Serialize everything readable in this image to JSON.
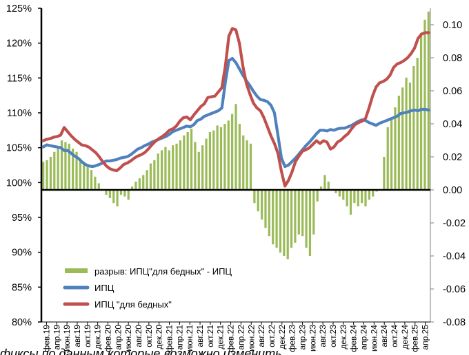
{
  "chart_data": {
    "type": "line",
    "title": "",
    "xlabel": "",
    "ylabel": "",
    "y_left": {
      "range": [
        80,
        125
      ],
      "ticks": [
        "80%",
        "85%",
        "90%",
        "95%",
        "100%",
        "105%",
        "110%",
        "115%",
        "120%",
        "125%"
      ]
    },
    "y_right": {
      "range": [
        -0.08,
        0.11
      ],
      "ticks": [
        "-0.08",
        "-0.06",
        "-0.04",
        "-0.02",
        "0.00",
        "0.02",
        "0.04",
        "0.06",
        "0.08",
        "0.10"
      ]
    },
    "grid": false,
    "legend_position": "bottom-left",
    "x_tick_labels": [
      "фев.19",
      "апр.19",
      "июн.19",
      "авг.19",
      "окт.19",
      "дек.19",
      "фев.20",
      "апр.20",
      "июн.20",
      "авг.20",
      "окт.20",
      "дек.20",
      "фев.21",
      "апр.21",
      "июн.21",
      "авг.21",
      "окт.21",
      "дек.21",
      "фев.22",
      "апр.22",
      "июн.22",
      "авг.22",
      "окт.22",
      "дек.22",
      "фев.23",
      "апр.23",
      "июн.23",
      "авг.23",
      "окт.23",
      "дек.23",
      "фев.24",
      "апр.24",
      "июн.24",
      "авг.24",
      "окт.24",
      "дек.24",
      "фев.25",
      "апр.25"
    ],
    "series": [
      {
        "name": "разрыв: ИПЦ\"для бедных\" - ИПЦ",
        "type": "bar",
        "axis": "right",
        "color": "#9bbb59",
        "values": [
          0.017,
          0.018,
          0.02,
          0.023,
          0.026,
          0.03,
          0.029,
          0.028,
          0.025,
          0.023,
          0.019,
          0.017,
          0.015,
          0.012,
          0.008,
          0.004,
          0.0,
          -0.003,
          -0.005,
          -0.008,
          -0.01,
          -0.003,
          -0.004,
          -0.006,
          0.002,
          0.005,
          0.007,
          0.009,
          0.012,
          0.016,
          0.018,
          0.022,
          0.024,
          0.026,
          0.024,
          0.027,
          0.028,
          0.03,
          0.033,
          0.035,
          0.037,
          0.029,
          0.023,
          0.027,
          0.031,
          0.035,
          0.036,
          0.039,
          0.038,
          0.04,
          0.042,
          0.046,
          0.052,
          0.04,
          0.033,
          0.03,
          0.028,
          -0.008,
          -0.013,
          -0.018,
          -0.023,
          -0.028,
          -0.033,
          -0.035,
          -0.038,
          -0.04,
          -0.042,
          -0.035,
          -0.032,
          -0.027,
          -0.028,
          -0.035,
          -0.04,
          -0.027,
          -0.007,
          0.002,
          0.009,
          0.005,
          0.0,
          -0.002,
          -0.004,
          -0.006,
          -0.01,
          -0.015,
          -0.008,
          -0.01,
          -0.008,
          -0.01,
          -0.006,
          -0.004,
          -0.001,
          0.0,
          0.02,
          0.038,
          0.044,
          0.05,
          0.057,
          0.062,
          0.068,
          0.065,
          0.075,
          0.08,
          0.095,
          0.103,
          0.108
        ]
      },
      {
        "name": "ИПЦ",
        "type": "line",
        "axis": "left",
        "color": "#4f81bd",
        "values": [
          105.1,
          105.4,
          105.3,
          105.2,
          105.1,
          105.0,
          104.6,
          104.6,
          104.2,
          103.8,
          103.5,
          103.0,
          102.6,
          102.4,
          102.3,
          102.4,
          102.6,
          102.8,
          103.1,
          103.1,
          103.2,
          103.3,
          103.5,
          103.6,
          103.7,
          104.0,
          104.4,
          104.8,
          105.0,
          105.3,
          105.5,
          105.8,
          106.0,
          106.2,
          106.4,
          106.6,
          106.9,
          107.3,
          107.5,
          107.7,
          107.9,
          108.1,
          108.0,
          108.3,
          108.9,
          109.1,
          109.5,
          109.7,
          109.9,
          110.1,
          110.3,
          110.7,
          114.4,
          117.5,
          117.8,
          117.2,
          116.3,
          115.4,
          114.6,
          113.9,
          113.1,
          112.4,
          111.9,
          111.8,
          111.6,
          111.1,
          110.0,
          106.8,
          103.5,
          102.3,
          102.5,
          103.0,
          103.5,
          104.1,
          104.7,
          105.3,
          105.8,
          106.4,
          107.0,
          107.5,
          107.5,
          107.4,
          107.6,
          107.5,
          107.7,
          107.8,
          107.8,
          108.0,
          108.2,
          108.5,
          108.8,
          109.0,
          108.9,
          108.6,
          108.4,
          108.2,
          108.5,
          108.7,
          108.9,
          109.1,
          109.3,
          109.5,
          109.9,
          110.0,
          110.1,
          110.3,
          110.4,
          110.3,
          110.5,
          110.5,
          110.4
        ]
      },
      {
        "name": "ИПЦ \"для бедных\"",
        "type": "line",
        "axis": "left",
        "color": "#c0504d",
        "values": [
          106.0,
          106.2,
          106.3,
          106.5,
          106.6,
          106.8,
          107.9,
          107.3,
          106.7,
          106.2,
          105.8,
          105.4,
          105.3,
          105.1,
          104.7,
          104.3,
          103.7,
          103.0,
          102.4,
          102.0,
          101.8,
          101.7,
          102.1,
          102.6,
          102.8,
          103.1,
          103.5,
          103.8,
          104.0,
          104.3,
          104.8,
          105.4,
          105.9,
          106.3,
          106.6,
          107.0,
          107.5,
          107.7,
          108.1,
          108.8,
          109.3,
          109.4,
          109.0,
          109.7,
          110.3,
          110.9,
          111.3,
          112.2,
          112.3,
          112.4,
          113.0,
          113.6,
          116.7,
          121.0,
          122.1,
          121.9,
          120.0,
          116.7,
          114.2,
          112.7,
          111.4,
          110.7,
          110.3,
          109.3,
          108.0,
          106.7,
          105.6,
          104.2,
          101.6,
          99.5,
          100.3,
          101.5,
          103.0,
          103.8,
          104.5,
          104.7,
          105.0,
          105.5,
          106.0,
          105.6,
          106.0,
          105.8,
          104.8,
          105.1,
          105.8,
          106.1,
          106.6,
          107.0,
          107.7,
          108.3,
          108.6,
          108.8,
          109.2,
          110.7,
          112.4,
          113.7,
          114.3,
          114.5,
          114.8,
          115.4,
          116.5,
          117.0,
          117.2,
          117.5,
          117.9,
          118.5,
          119.3,
          120.7,
          121.3,
          121.5,
          121.5
        ]
      }
    ]
  },
  "footer": {
    "text": "фиксы по данным которые возможно изменить"
  }
}
